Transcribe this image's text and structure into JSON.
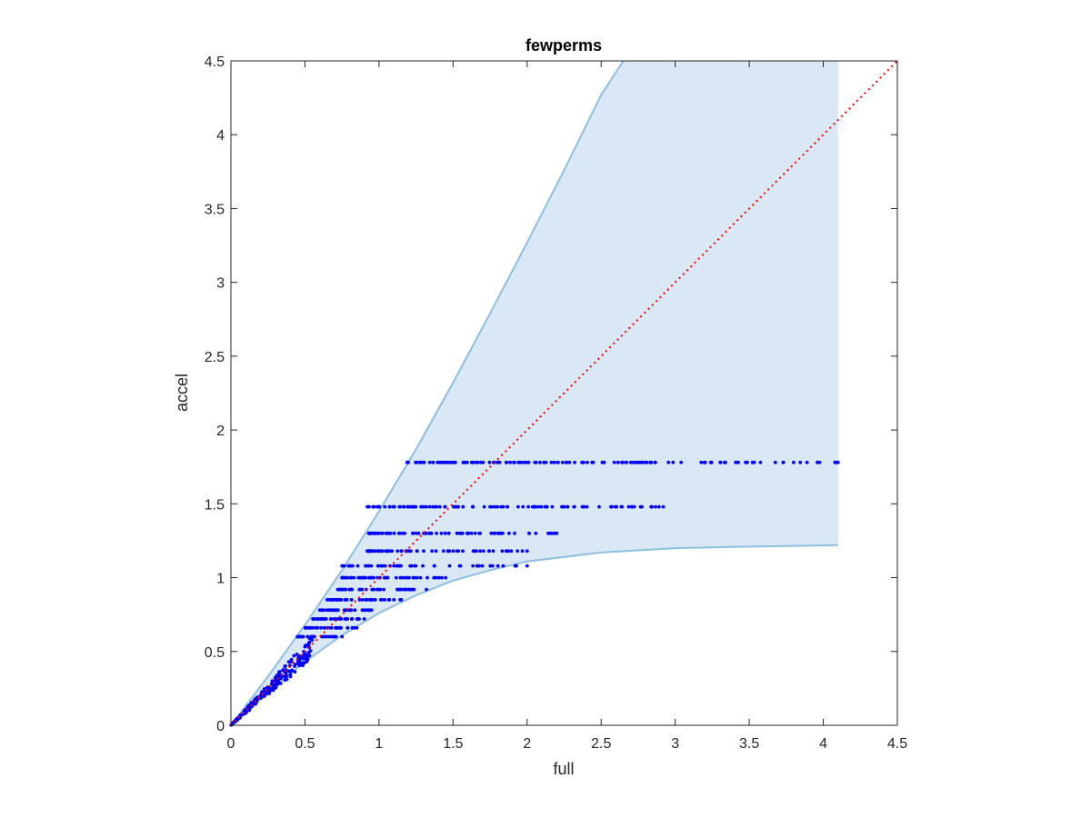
{
  "chart_data": {
    "type": "scatter",
    "title": "fewperms",
    "xlabel": "full",
    "ylabel": "accel",
    "xlim": [
      0,
      4.5
    ],
    "ylim": [
      0,
      4.5
    ],
    "xticks": [
      "0",
      "0.5",
      "1",
      "1.5",
      "2",
      "2.5",
      "3",
      "3.5",
      "4",
      "4.5"
    ],
    "yticks": [
      "0",
      "0.5",
      "1",
      "1.5",
      "2",
      "2.5",
      "3",
      "3.5",
      "4",
      "4.5"
    ],
    "grid": false,
    "colors": {
      "points": "#0000ff",
      "band_fill": "#d9e8f4",
      "band_edge": "#8fbfe0",
      "reference_line": "#ff0000"
    },
    "band": {
      "upper": [
        [
          0,
          0
        ],
        [
          0.25,
          0.33
        ],
        [
          0.5,
          0.68
        ],
        [
          0.75,
          1.05
        ],
        [
          1.0,
          1.45
        ],
        [
          1.25,
          1.87
        ],
        [
          1.5,
          2.32
        ],
        [
          1.75,
          2.79
        ],
        [
          2.0,
          3.27
        ],
        [
          2.25,
          3.76
        ],
        [
          2.5,
          4.27
        ],
        [
          2.65,
          4.5
        ],
        [
          4.1,
          4.5
        ]
      ],
      "lower": [
        [
          0,
          0
        ],
        [
          0.25,
          0.22
        ],
        [
          0.5,
          0.43
        ],
        [
          0.75,
          0.61
        ],
        [
          1.0,
          0.76
        ],
        [
          1.25,
          0.88
        ],
        [
          1.5,
          0.98
        ],
        [
          1.75,
          1.05
        ],
        [
          2.0,
          1.11
        ],
        [
          2.5,
          1.17
        ],
        [
          3.0,
          1.2
        ],
        [
          3.5,
          1.21
        ],
        [
          4.1,
          1.22
        ]
      ]
    },
    "reference_line": {
      "style": "dotted",
      "from": [
        0,
        0
      ],
      "to": [
        4.5,
        4.5
      ]
    },
    "series": [
      {
        "levels": [
          {
            "y": 1.78,
            "x_min": 1.19,
            "x_max": 4.1,
            "points": 150
          },
          {
            "y": 1.48,
            "x_min": 0.92,
            "x_max": 2.92,
            "points": 110
          },
          {
            "y": 1.3,
            "x_min": 0.93,
            "x_max": 2.2,
            "points": 80
          },
          {
            "y": 1.18,
            "x_min": 0.92,
            "x_max": 2.0,
            "points": 70
          },
          {
            "y": 1.08,
            "x_min": 0.75,
            "x_max": 2.0,
            "points": 50
          },
          {
            "y": 1.0,
            "x_min": 0.75,
            "x_max": 1.45,
            "points": 50
          },
          {
            "y": 0.92,
            "x_min": 0.72,
            "x_max": 1.32,
            "points": 40
          },
          {
            "y": 0.85,
            "x_min": 0.65,
            "x_max": 1.15,
            "points": 40
          },
          {
            "y": 0.78,
            "x_min": 0.6,
            "x_max": 0.95,
            "points": 35
          },
          {
            "y": 0.72,
            "x_min": 0.55,
            "x_max": 0.9,
            "points": 35
          },
          {
            "y": 0.66,
            "x_min": 0.5,
            "x_max": 0.85,
            "points": 30
          },
          {
            "y": 0.6,
            "x_min": 0.45,
            "x_max": 0.75,
            "points": 30
          }
        ],
        "cloud": {
          "x_min": 0,
          "x_max": 0.55,
          "points": 220
        }
      }
    ]
  }
}
